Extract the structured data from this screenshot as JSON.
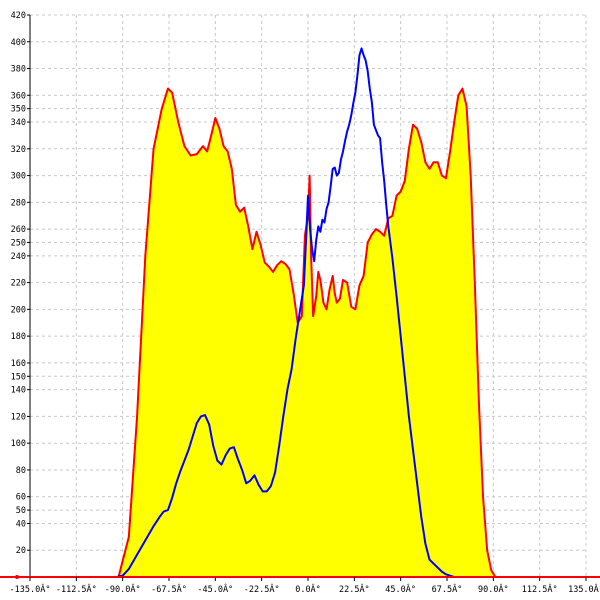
{
  "chart_data": {
    "type": "area",
    "title": "",
    "xlabel": "",
    "ylabel": "",
    "xlim": [
      -135,
      135
    ],
    "ylim": [
      0,
      420
    ],
    "x_ticks": [
      -135,
      -112.5,
      -90,
      -67.5,
      -45,
      -22.5,
      0,
      22.5,
      45,
      67.5,
      90,
      112.5,
      135
    ],
    "x_tick_labels": [
      "-135.0Â°",
      "-112.5Â°",
      "-90.0Â°",
      "-67.5Â°",
      "-45.0Â°",
      "-22.5Â°",
      "0.0Â°",
      "22.5Â°",
      "45.0Â°",
      "67.5Â°",
      "90.0Â°",
      "112.5Â°",
      "135.0Â°"
    ],
    "y_ticks": [
      20,
      40,
      50,
      60,
      80,
      100,
      120,
      140,
      150,
      160,
      180,
      200,
      220,
      240,
      250,
      260,
      280,
      300,
      320,
      340,
      350,
      360,
      380,
      400,
      420
    ],
    "grid": true,
    "colors": {
      "fill": "#ffff00",
      "red_series": "#ff0000",
      "blue_series": "#0000ff",
      "grid": "#c8c8c8"
    },
    "series": [
      {
        "color": "#ff0000",
        "filled": true,
        "points": [
          [
            -135,
            0
          ],
          [
            -92,
            0
          ],
          [
            -87,
            30
          ],
          [
            -83,
            120
          ],
          [
            -79,
            240
          ],
          [
            -75,
            320
          ],
          [
            -71,
            350
          ],
          [
            -68,
            365
          ],
          [
            -66,
            362
          ],
          [
            -63,
            340
          ],
          [
            -60,
            322
          ],
          [
            -57,
            315
          ],
          [
            -54,
            316
          ],
          [
            -51,
            322
          ],
          [
            -49,
            318
          ],
          [
            -47,
            330
          ],
          [
            -45,
            343
          ],
          [
            -43,
            335
          ],
          [
            -41,
            322
          ],
          [
            -39,
            318
          ],
          [
            -37,
            305
          ],
          [
            -35,
            278
          ],
          [
            -33,
            273
          ],
          [
            -31,
            276
          ],
          [
            -29,
            262
          ],
          [
            -27,
            245
          ],
          [
            -25,
            258
          ],
          [
            -23,
            248
          ],
          [
            -21,
            235
          ],
          [
            -19,
            232
          ],
          [
            -17,
            228
          ],
          [
            -15,
            233
          ],
          [
            -13,
            236
          ],
          [
            -11,
            234
          ],
          [
            -9,
            230
          ],
          [
            -7,
            212
          ],
          [
            -5,
            190
          ],
          [
            -3,
            195
          ],
          [
            -1.5,
            255
          ],
          [
            0,
            270
          ],
          [
            0.8,
            300
          ],
          [
            1.5,
            240
          ],
          [
            2.5,
            195
          ],
          [
            4,
            210
          ],
          [
            5,
            228
          ],
          [
            6,
            222
          ],
          [
            7.5,
            205
          ],
          [
            9,
            200
          ],
          [
            10.5,
            215
          ],
          [
            12,
            225
          ],
          [
            13,
            212
          ],
          [
            14,
            205
          ],
          [
            15.5,
            208
          ],
          [
            17,
            222
          ],
          [
            19,
            220
          ],
          [
            21,
            202
          ],
          [
            23,
            200
          ],
          [
            25,
            218
          ],
          [
            27,
            225
          ],
          [
            29,
            250
          ],
          [
            31,
            256
          ],
          [
            33,
            260
          ],
          [
            35,
            258
          ],
          [
            37,
            255
          ],
          [
            39,
            268
          ],
          [
            41,
            270
          ],
          [
            43,
            285
          ],
          [
            45,
            288
          ],
          [
            47,
            296
          ],
          [
            49,
            320
          ],
          [
            51,
            338
          ],
          [
            53,
            335
          ],
          [
            55,
            325
          ],
          [
            57,
            310
          ],
          [
            59,
            305
          ],
          [
            61,
            310
          ],
          [
            63,
            310
          ],
          [
            65,
            300
          ],
          [
            67,
            298
          ],
          [
            69,
            318
          ],
          [
            71,
            340
          ],
          [
            73,
            360
          ],
          [
            75,
            365
          ],
          [
            77,
            352
          ],
          [
            79,
            300
          ],
          [
            81,
            220
          ],
          [
            83,
            130
          ],
          [
            85,
            60
          ],
          [
            87,
            20
          ],
          [
            89,
            5
          ],
          [
            91,
            0
          ],
          [
            135,
            0
          ]
        ]
      },
      {
        "color": "#0000ff",
        "filled": false,
        "points": [
          [
            -135,
            0
          ],
          [
            -93,
            0
          ],
          [
            -90,
            1
          ],
          [
            -87,
            6
          ],
          [
            -84,
            14
          ],
          [
            -81,
            22
          ],
          [
            -78,
            30
          ],
          [
            -75,
            38
          ],
          [
            -72,
            45
          ],
          [
            -70,
            49
          ],
          [
            -68,
            50
          ],
          [
            -66,
            59
          ],
          [
            -64,
            70
          ],
          [
            -62,
            79
          ],
          [
            -60,
            87
          ],
          [
            -58,
            95
          ],
          [
            -56,
            105
          ],
          [
            -54,
            115
          ],
          [
            -52,
            120
          ],
          [
            -50,
            121
          ],
          [
            -48,
            114
          ],
          [
            -46,
            98
          ],
          [
            -44,
            87
          ],
          [
            -42,
            84
          ],
          [
            -40,
            91
          ],
          [
            -38,
            96
          ],
          [
            -36,
            97
          ],
          [
            -34,
            88
          ],
          [
            -32,
            80
          ],
          [
            -30,
            70
          ],
          [
            -28,
            72
          ],
          [
            -26,
            76
          ],
          [
            -24,
            69
          ],
          [
            -22,
            64
          ],
          [
            -20,
            64
          ],
          [
            -18,
            68
          ],
          [
            -16,
            78
          ],
          [
            -14,
            98
          ],
          [
            -12,
            120
          ],
          [
            -10,
            140
          ],
          [
            -8,
            155
          ],
          [
            -6,
            178
          ],
          [
            -4,
            198
          ],
          [
            -2,
            218
          ],
          [
            -1,
            250
          ],
          [
            0,
            285
          ],
          [
            1,
            260
          ],
          [
            2,
            245
          ],
          [
            3,
            236
          ],
          [
            4,
            252
          ],
          [
            5,
            262
          ],
          [
            6,
            258
          ],
          [
            7,
            267
          ],
          [
            8,
            265
          ],
          [
            9,
            275
          ],
          [
            10,
            280
          ],
          [
            11,
            292
          ],
          [
            12,
            305
          ],
          [
            13,
            306
          ],
          [
            14,
            300
          ],
          [
            15,
            302
          ],
          [
            16,
            312
          ],
          [
            17,
            318
          ],
          [
            18,
            326
          ],
          [
            19,
            333
          ],
          [
            20,
            338
          ],
          [
            21,
            345
          ],
          [
            22,
            354
          ],
          [
            23,
            362
          ],
          [
            24,
            375
          ],
          [
            25,
            390
          ],
          [
            26,
            395
          ],
          [
            27,
            390
          ],
          [
            28,
            386
          ],
          [
            29,
            378
          ],
          [
            30,
            365
          ],
          [
            31,
            355
          ],
          [
            32,
            338
          ],
          [
            33,
            334
          ],
          [
            34,
            330
          ],
          [
            35,
            328
          ],
          [
            36,
            310
          ],
          [
            37,
            296
          ],
          [
            38,
            278
          ],
          [
            39,
            262
          ],
          [
            41,
            238
          ],
          [
            43,
            210
          ],
          [
            45,
            180
          ],
          [
            47,
            150
          ],
          [
            49,
            120
          ],
          [
            51,
            95
          ],
          [
            53,
            70
          ],
          [
            55,
            45
          ],
          [
            57,
            25
          ],
          [
            59,
            13
          ],
          [
            61,
            10
          ],
          [
            63,
            7
          ],
          [
            65,
            4
          ],
          [
            67,
            2
          ],
          [
            69,
            1
          ],
          [
            71,
            0
          ],
          [
            135,
            0
          ]
        ]
      }
    ]
  }
}
